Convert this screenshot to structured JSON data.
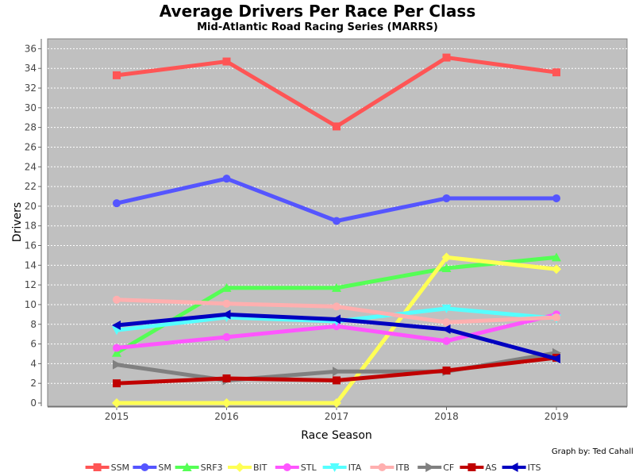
{
  "chart_data": {
    "type": "line",
    "title": "Average Drivers Per Race Per Class",
    "subtitle": "Mid-Atlantic Road Racing Series (MARRS)",
    "xlabel": "Race Season",
    "ylabel": "Drivers",
    "credit": "Graph by: Ted Cahall",
    "categories": [
      "2015",
      "2016",
      "2017",
      "2018",
      "2019"
    ],
    "ylim": [
      0,
      37
    ],
    "yticks": [
      0,
      2,
      4,
      6,
      8,
      10,
      12,
      14,
      16,
      18,
      20,
      22,
      24,
      26,
      28,
      30,
      32,
      34,
      36
    ],
    "grid": true,
    "legend_position": "bottom",
    "background_color": "#c0c0c0",
    "series": [
      {
        "name": "SSM",
        "color": "#ff5555",
        "marker": "square",
        "values": [
          33.3,
          34.7,
          28.1,
          35.1,
          33.6
        ]
      },
      {
        "name": "SM",
        "color": "#5555ff",
        "marker": "circle",
        "values": [
          20.3,
          22.8,
          18.5,
          20.8,
          20.8
        ]
      },
      {
        "name": "SRF3",
        "color": "#55ff55",
        "marker": "triangle-up",
        "values": [
          5.1,
          11.7,
          11.7,
          13.7,
          14.8
        ]
      },
      {
        "name": "BIT",
        "color": "#ffff55",
        "marker": "diamond",
        "values": [
          0,
          0,
          0,
          14.8,
          13.6
        ]
      },
      {
        "name": "STL",
        "color": "#ff55ff",
        "marker": "circle",
        "values": [
          5.6,
          6.7,
          7.8,
          6.3,
          9.0
        ]
      },
      {
        "name": "ITA",
        "color": "#55ffff",
        "marker": "triangle-down",
        "values": [
          7.4,
          8.7,
          8.3,
          9.6,
          8.6
        ]
      },
      {
        "name": "ITB",
        "color": "#ffafaf",
        "marker": "circle",
        "values": [
          10.5,
          10.1,
          9.8,
          8.2,
          8.7
        ]
      },
      {
        "name": "CF",
        "color": "#808080",
        "marker": "triangle-right",
        "values": [
          3.9,
          2.3,
          3.2,
          3.2,
          5.1
        ]
      },
      {
        "name": "AS",
        "color": "#c00000",
        "marker": "square",
        "values": [
          2.0,
          2.5,
          2.3,
          3.3,
          4.6
        ]
      },
      {
        "name": "ITS",
        "color": "#0000c0",
        "marker": "triangle-left",
        "values": [
          7.9,
          9.0,
          8.5,
          7.5,
          4.5
        ]
      }
    ]
  }
}
